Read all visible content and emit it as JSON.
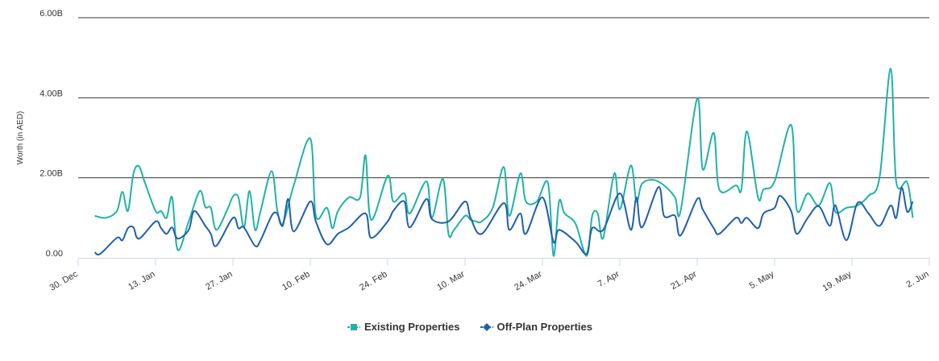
{
  "chart_data": {
    "type": "line",
    "y_label": "Worth (in AED)",
    "ylim": [
      0,
      6
    ],
    "yticks": [
      {
        "value": 0,
        "label": "0.00"
      },
      {
        "value": 2,
        "label": "2.00B"
      },
      {
        "value": 4,
        "label": "4.00B"
      },
      {
        "value": 6,
        "label": "6.00B"
      }
    ],
    "xlim": [
      "12-30",
      "06-02"
    ],
    "xticks": [
      {
        "value": "12-30",
        "label": "30. Dec"
      },
      {
        "value": "01-13",
        "label": "13. Jan"
      },
      {
        "value": "01-27",
        "label": "27. Jan"
      },
      {
        "value": "02-10",
        "label": "10. Feb"
      },
      {
        "value": "02-24",
        "label": "24. Feb"
      },
      {
        "value": "03-10",
        "label": "10. Mar"
      },
      {
        "value": "03-24",
        "label": "24. Mar"
      },
      {
        "value": "04-07",
        "label": "7. Apr"
      },
      {
        "value": "04-21",
        "label": "21. Apr"
      },
      {
        "value": "05-05",
        "label": "5. May"
      },
      {
        "value": "05-19",
        "label": "19. May"
      },
      {
        "value": "06-02",
        "label": "2. Jun"
      }
    ],
    "grid": true,
    "series": [
      {
        "name": "Existing Properties",
        "color": "#20b2a6",
        "marker": "square",
        "x": [
          "01-02",
          "01-04",
          "01-06",
          "01-07",
          "01-08",
          "01-09",
          "01-10",
          "01-11",
          "01-13",
          "01-14",
          "01-15",
          "01-16",
          "01-17",
          "01-19",
          "01-21",
          "01-22",
          "01-23",
          "01-24",
          "01-26",
          "01-27",
          "01-28",
          "01-29",
          "01-30",
          "01-31",
          "02-01",
          "02-03",
          "02-04",
          "02-05",
          "02-07",
          "02-10",
          "02-11",
          "02-13",
          "02-14",
          "02-15",
          "02-17",
          "02-19",
          "02-20",
          "02-21",
          "02-24",
          "02-25",
          "02-27",
          "02-28",
          "03-03",
          "03-04",
          "03-06",
          "03-07",
          "03-08",
          "03-10",
          "03-11",
          "03-12",
          "03-13",
          "03-15",
          "03-17",
          "03-18",
          "03-20",
          "03-21",
          "03-23",
          "03-25",
          "03-26",
          "03-27",
          "03-28",
          "03-30",
          "04-01",
          "04-02",
          "04-03",
          "04-04",
          "04-06",
          "04-07",
          "04-09",
          "04-10",
          "04-11",
          "04-13",
          "04-15",
          "04-17",
          "04-18",
          "04-21",
          "04-22",
          "04-24",
          "04-25",
          "04-28",
          "04-29",
          "04-30",
          "05-02",
          "05-03",
          "05-05",
          "05-08",
          "05-09",
          "05-11",
          "05-13",
          "05-15",
          "05-16",
          "05-18",
          "05-20",
          "05-22",
          "05-24",
          "05-26",
          "05-27",
          "05-29",
          "05-30"
        ],
        "values": [
          1.05,
          1.0,
          1.17,
          1.65,
          1.17,
          2.11,
          2.29,
          1.91,
          1.17,
          1.17,
          1.0,
          1.51,
          0.2,
          0.91,
          1.67,
          1.27,
          1.25,
          0.7,
          1.21,
          1.53,
          1.51,
          0.76,
          1.67,
          0.7,
          1.17,
          2.17,
          1.21,
          0.85,
          1.81,
          2.98,
          1.05,
          1.25,
          0.74,
          1.17,
          1.51,
          1.51,
          2.56,
          0.95,
          2.05,
          1.41,
          1.61,
          1.11,
          1.91,
          1.0,
          1.97,
          0.6,
          0.7,
          1.05,
          0.95,
          0.91,
          0.91,
          1.25,
          2.27,
          1.05,
          2.11,
          1.41,
          1.41,
          1.87,
          0.05,
          1.41,
          1.11,
          0.85,
          0.05,
          1.05,
          1.11,
          0.5,
          2.11,
          1.21,
          2.31,
          1.41,
          1.85,
          1.95,
          1.81,
          1.51,
          1.17,
          3.98,
          2.21,
          3.12,
          1.71,
          1.81,
          1.71,
          3.16,
          1.51,
          1.71,
          1.91,
          3.32,
          1.21,
          1.61,
          1.31,
          1.87,
          1.15,
          1.25,
          1.31,
          1.55,
          2.01,
          4.73,
          1.91,
          1.89,
          1.0
        ]
      },
      {
        "name": "Off-Plan Properties",
        "color": "#1f5fad",
        "marker": "diamond",
        "x": [
          "01-02",
          "01-03",
          "01-06",
          "01-07",
          "01-08",
          "01-09",
          "01-10",
          "01-13",
          "01-14",
          "01-15",
          "01-16",
          "01-17",
          "01-19",
          "01-20",
          "01-22",
          "01-23",
          "01-24",
          "01-27",
          "01-28",
          "01-29",
          "01-31",
          "02-01",
          "02-03",
          "02-04",
          "02-05",
          "02-06",
          "02-07",
          "02-10",
          "02-11",
          "02-13",
          "02-15",
          "02-17",
          "02-20",
          "02-21",
          "02-24",
          "02-25",
          "02-27",
          "02-28",
          "03-03",
          "03-04",
          "03-07",
          "03-10",
          "03-11",
          "03-13",
          "03-17",
          "03-18",
          "03-20",
          "03-21",
          "03-24",
          "03-26",
          "03-27",
          "03-30",
          "04-01",
          "04-02",
          "04-04",
          "04-07",
          "04-09",
          "04-10",
          "04-11",
          "04-14",
          "04-15",
          "04-17",
          "04-18",
          "04-21",
          "04-22",
          "04-24",
          "04-25",
          "04-28",
          "04-29",
          "04-30",
          "05-02",
          "05-03",
          "05-05",
          "05-06",
          "05-08",
          "05-09",
          "05-11",
          "05-13",
          "05-15",
          "05-16",
          "05-18",
          "05-20",
          "05-22",
          "05-24",
          "05-26",
          "05-27",
          "05-28",
          "05-29",
          "05-30"
        ],
        "values": [
          0.14,
          0.1,
          0.5,
          0.44,
          0.74,
          0.76,
          0.48,
          0.91,
          0.74,
          0.6,
          0.76,
          0.48,
          0.7,
          1.17,
          0.8,
          0.6,
          0.3,
          1.0,
          0.74,
          0.76,
          0.3,
          0.44,
          1.05,
          1.11,
          0.8,
          1.47,
          0.66,
          1.41,
          0.91,
          0.34,
          0.6,
          0.76,
          1.11,
          0.5,
          0.91,
          1.17,
          1.41,
          0.76,
          1.47,
          0.97,
          0.91,
          1.41,
          1.0,
          0.6,
          1.37,
          0.7,
          1.11,
          0.6,
          1.51,
          0.4,
          0.7,
          0.4,
          0.1,
          0.74,
          0.7,
          1.61,
          0.7,
          1.51,
          0.76,
          1.77,
          1.05,
          1.05,
          0.56,
          1.47,
          1.21,
          0.74,
          0.6,
          1.0,
          0.87,
          1.0,
          0.74,
          1.11,
          1.25,
          1.55,
          1.17,
          0.6,
          1.0,
          1.29,
          0.8,
          1.31,
          0.44,
          1.37,
          1.11,
          0.8,
          1.31,
          1.0,
          1.75,
          1.15,
          1.41
        ]
      }
    ]
  }
}
